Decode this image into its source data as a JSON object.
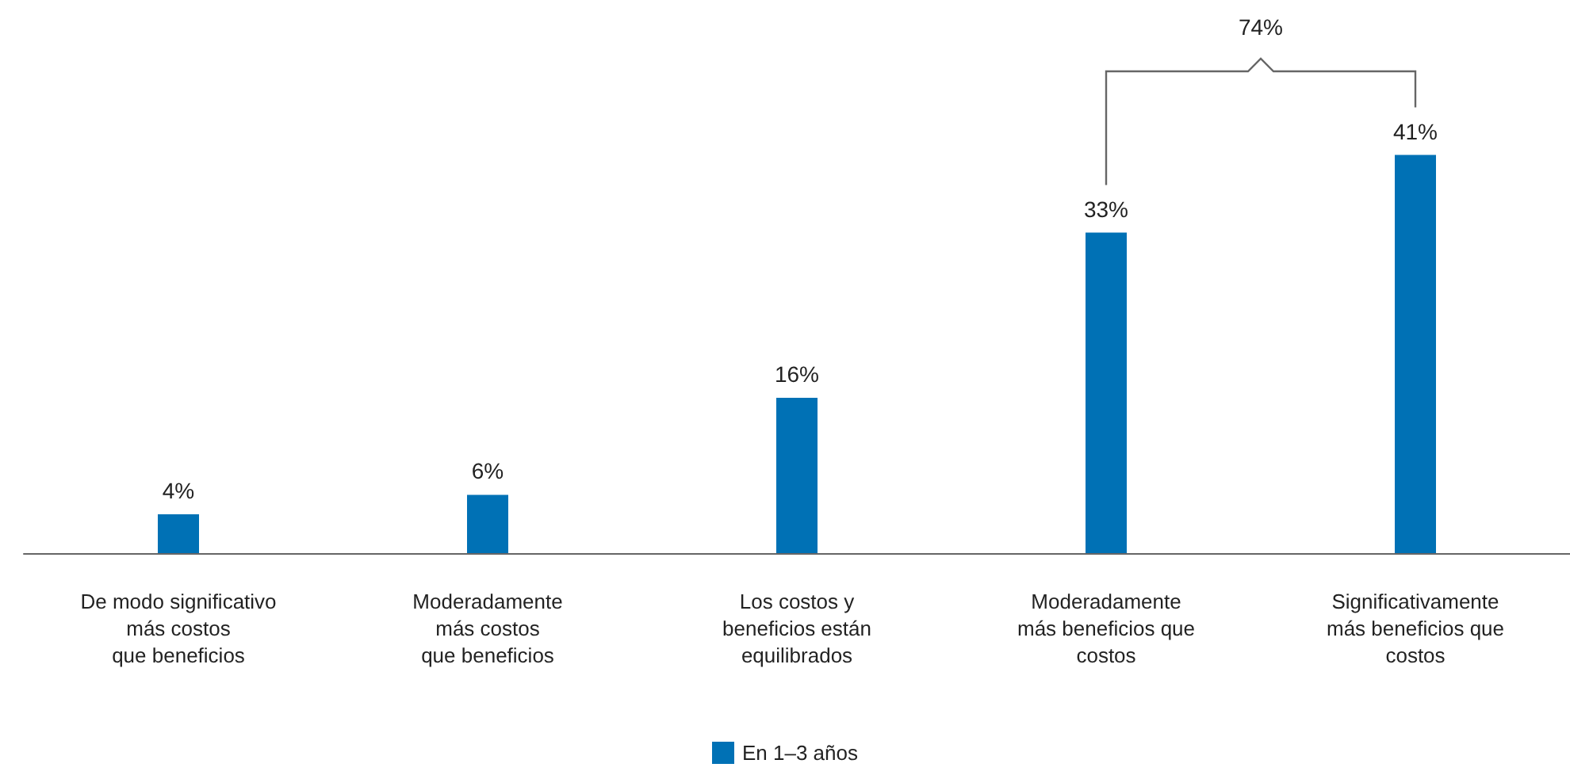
{
  "chart_data": {
    "type": "bar",
    "categories": [
      "De modo significativo\nmás costos\nque beneficios",
      "Moderadamente\nmás costos\nque beneficios",
      "Los costos y\nbeneficios están\nequilibrados",
      "Moderadamente\nmás beneficios que\ncostos",
      "Significativamente\nmás beneficios que\ncostos"
    ],
    "series": [
      {
        "name": "En 1–3 años",
        "color": "#0071b5",
        "values": [
          4,
          6,
          16,
          33,
          41
        ],
        "value_labels": [
          "4%",
          "6%",
          "16%",
          "33%",
          "41%"
        ]
      }
    ],
    "legend": "bottom",
    "grid": false,
    "annotations": [
      "74%"
    ]
  }
}
